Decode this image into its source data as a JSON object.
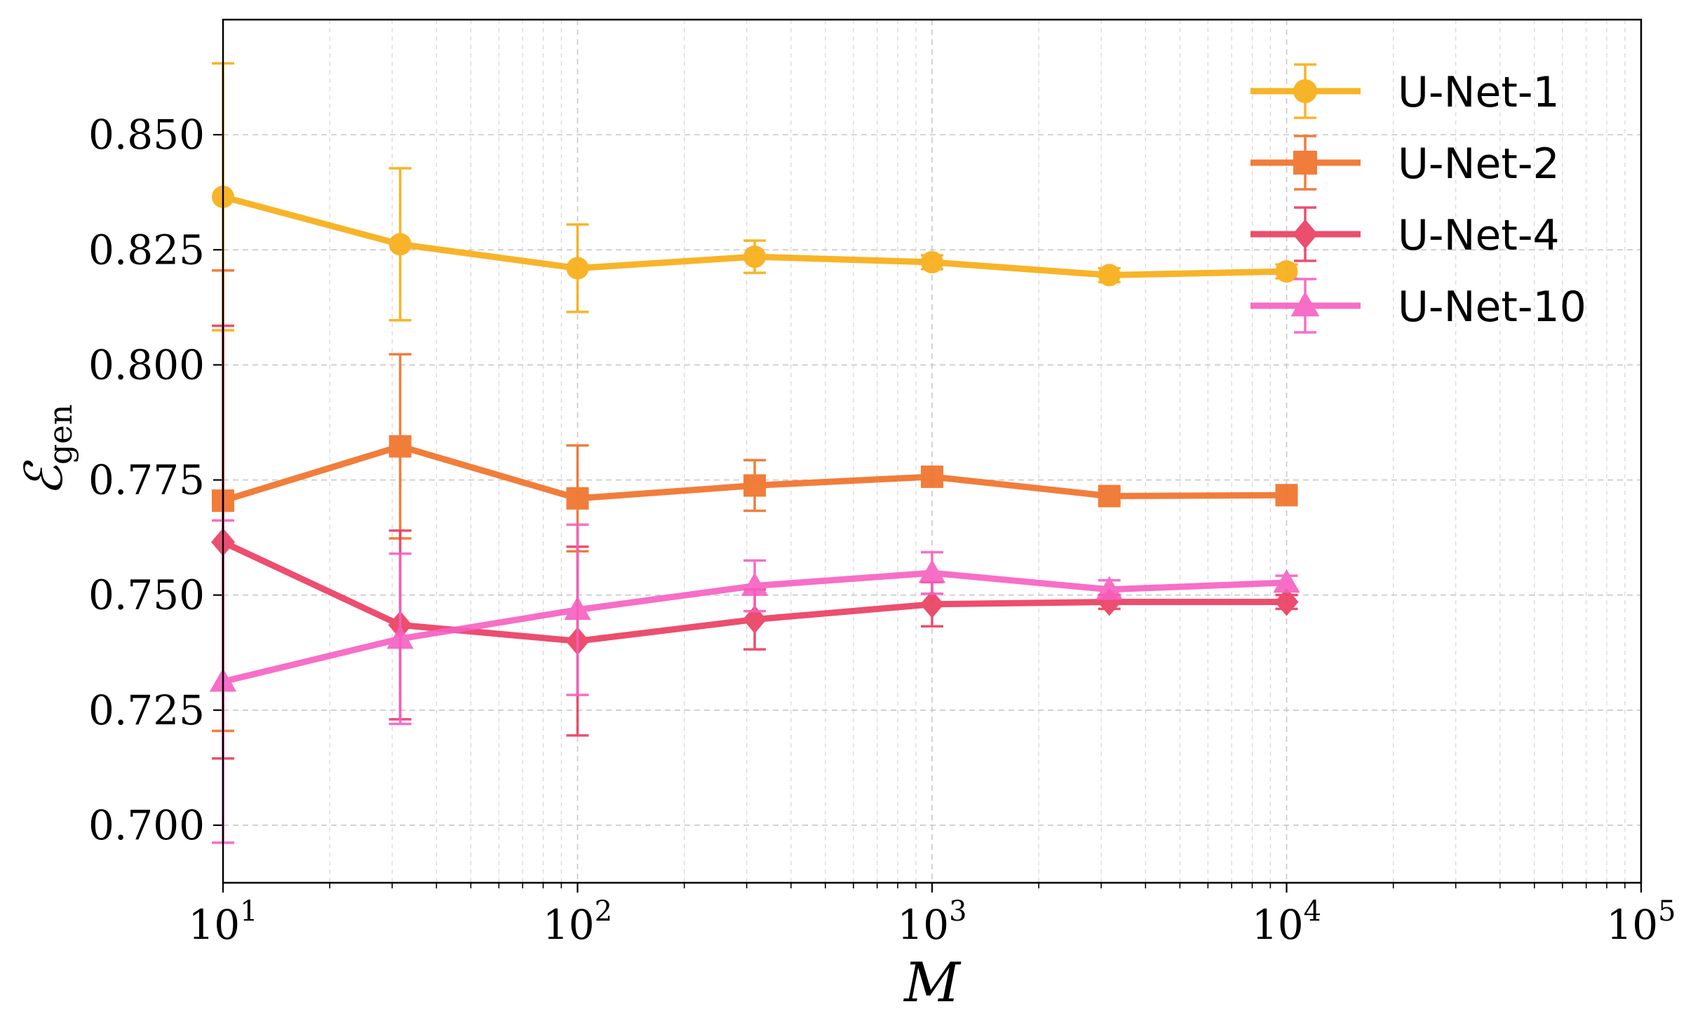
{
  "chart_data": {
    "type": "line",
    "title": "",
    "xlabel": "M",
    "ylabel_main": "ℰ",
    "ylabel_sub": "gen",
    "xscale": "log",
    "xlim": [
      10,
      100000
    ],
    "ylim": [
      0.6875,
      0.875
    ],
    "grid": true,
    "legend_position": "top-right",
    "x_ticks": [
      {
        "base": "10",
        "exp": "1"
      },
      {
        "base": "10",
        "exp": "2"
      },
      {
        "base": "10",
        "exp": "3"
      },
      {
        "base": "10",
        "exp": "4"
      },
      {
        "base": "10",
        "exp": "5"
      }
    ],
    "y_ticks": [
      "0.700",
      "0.725",
      "0.750",
      "0.775",
      "0.800",
      "0.825",
      "0.850"
    ],
    "x": [
      10,
      31.6,
      100,
      316,
      1000,
      3162,
      10000
    ],
    "series": [
      {
        "name": "U-Net-1",
        "color": "#F7AC12",
        "marker": "circle",
        "values": [
          0.8365,
          0.8262,
          0.821,
          0.8235,
          0.8223,
          0.8195,
          0.8203
        ],
        "errors": [
          0.029,
          0.0165,
          0.0095,
          0.0035,
          0.0015,
          0.0015,
          0.0015
        ]
      },
      {
        "name": "U-Net-2",
        "color": "#F07026",
        "marker": "square",
        "values": [
          0.7705,
          0.7823,
          0.771,
          0.7738,
          0.7757,
          0.7715,
          0.7717
        ],
        "errors": [
          0.05,
          0.02,
          0.0115,
          0.0055,
          0.0015,
          0.0015,
          0.0015
        ]
      },
      {
        "name": "U-Net-4",
        "color": "#EA3B5F",
        "marker": "diamond",
        "values": [
          0.7615,
          0.7435,
          0.74,
          0.7447,
          0.748,
          0.7485,
          0.7485
        ],
        "errors": [
          0.047,
          0.0205,
          0.0205,
          0.0065,
          0.0048,
          0.0015,
          0.0015
        ]
      },
      {
        "name": "U-Net-10",
        "color": "#F65FC1",
        "marker": "triangle",
        "values": [
          0.7312,
          0.7405,
          0.7468,
          0.752,
          0.7548,
          0.7512,
          0.7527
        ],
        "errors": [
          0.035,
          0.0185,
          0.0185,
          0.0055,
          0.0045,
          0.002,
          0.0015
        ]
      }
    ]
  }
}
